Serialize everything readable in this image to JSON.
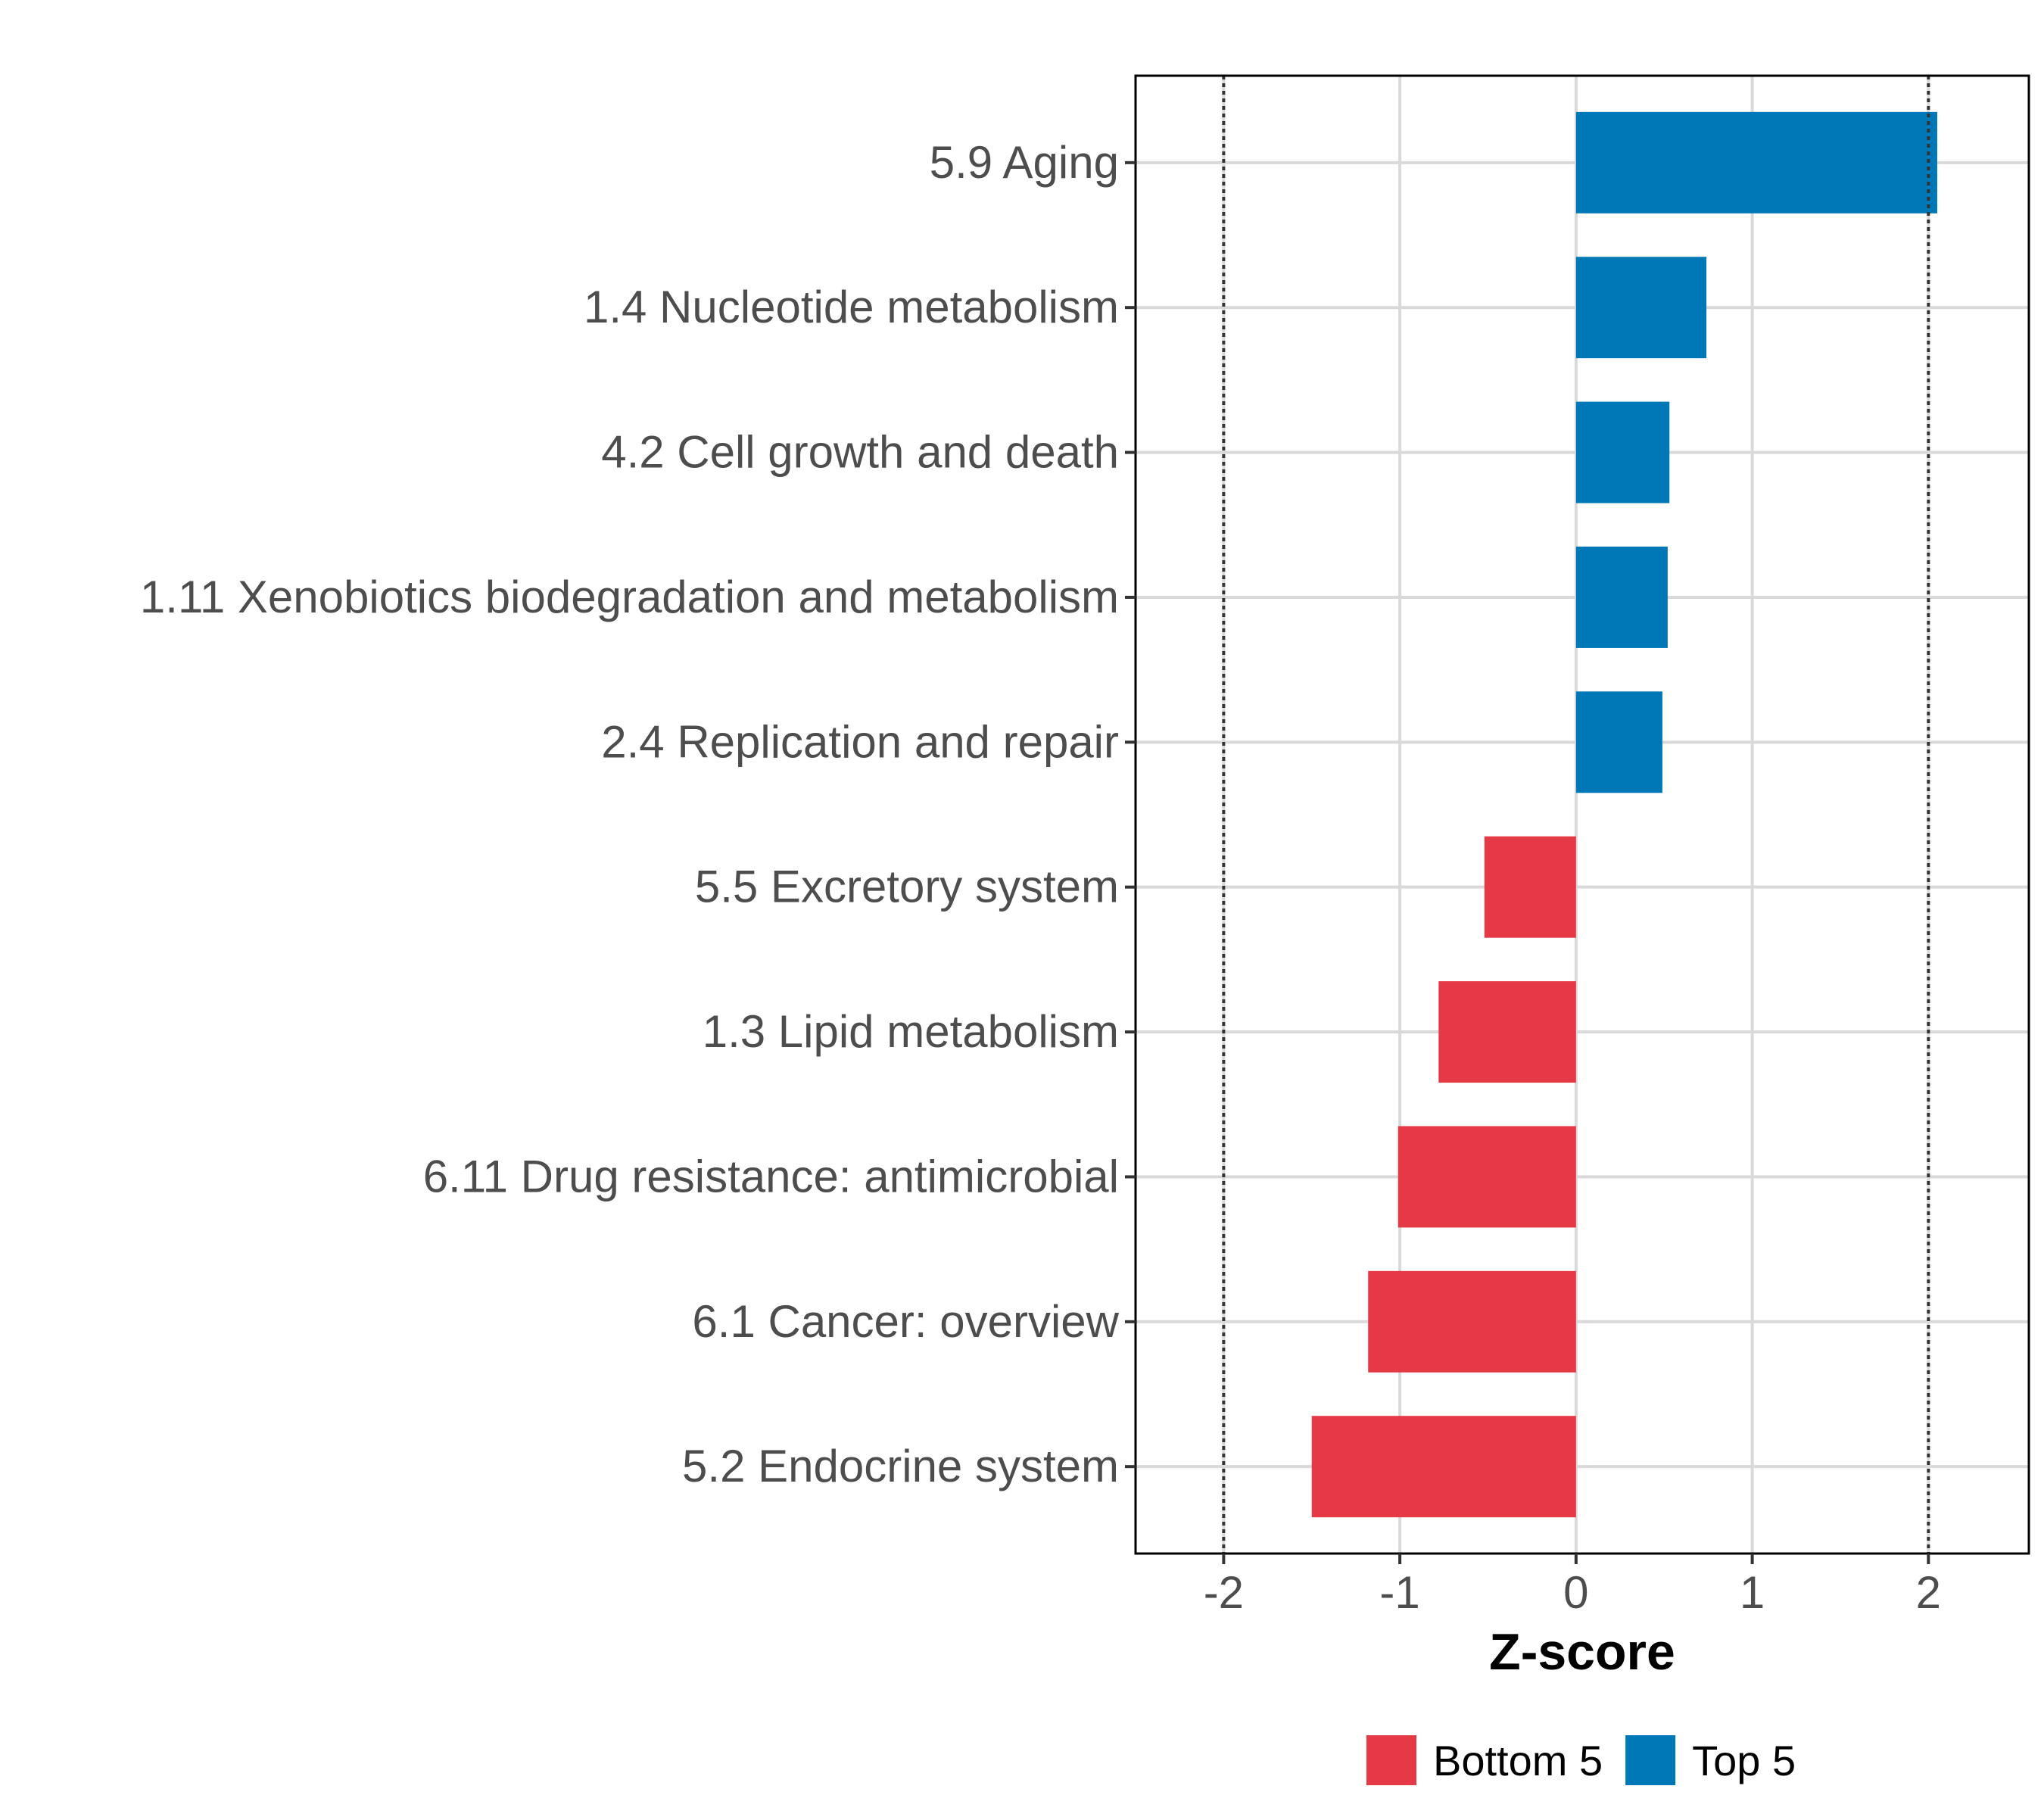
{
  "chart_data": {
    "type": "bar",
    "orientation": "horizontal",
    "title": "",
    "xlabel": "Z-score",
    "ylabel": "",
    "xlim": [
      -2.5,
      2.57
    ],
    "xticks": [
      -2,
      -1,
      0,
      1,
      2
    ],
    "xtick_labels": [
      "-2",
      "-1",
      "0",
      "1",
      "2"
    ],
    "reference_lines": [
      -2,
      2
    ],
    "grid": true,
    "legend_position": "bottom",
    "categories": [
      "5.9 Aging",
      "1.4 Nucleotide metabolism",
      "4.2 Cell growth and death",
      "1.11 Xenobiotics biodegradation and metabolism",
      "2.4 Replication and repair",
      "5.5 Excretory system",
      "1.3 Lipid metabolism",
      "6.11 Drug resistance: antimicrobial",
      "6.1 Cancer: overview",
      "5.2 Endocrine system"
    ],
    "values": [
      2.05,
      0.74,
      0.53,
      0.52,
      0.49,
      -0.52,
      -0.78,
      -1.01,
      -1.18,
      -1.5
    ],
    "groups": [
      "Top 5",
      "Top 5",
      "Top 5",
      "Top 5",
      "Top 5",
      "Bottom 5",
      "Bottom 5",
      "Bottom 5",
      "Bottom 5",
      "Bottom 5"
    ],
    "legend": [
      {
        "name": "Bottom 5",
        "color": "#e63946"
      },
      {
        "name": "Top 5",
        "color": "#0077b6"
      }
    ]
  }
}
